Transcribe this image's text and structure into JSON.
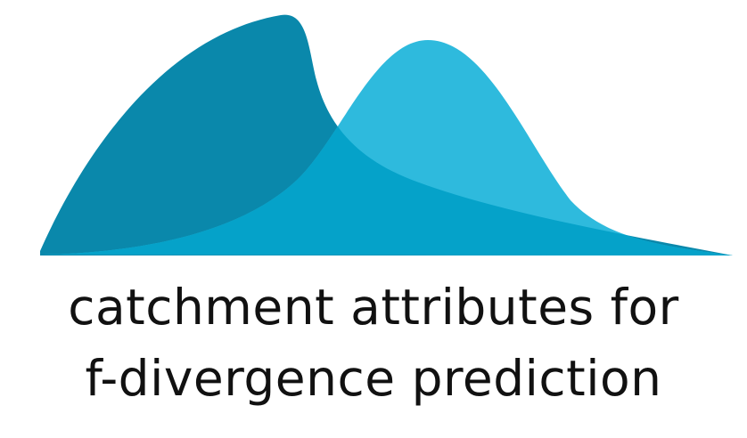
{
  "logo": {
    "line1": "catchment attributes for",
    "line2": "f-divergence prediction",
    "colors": {
      "dark_curve": "#0A88AB",
      "light_curve": "#2EBADD",
      "overlap": "#05A2C9",
      "text": "#111111",
      "background": "#FFFFFF"
    }
  }
}
